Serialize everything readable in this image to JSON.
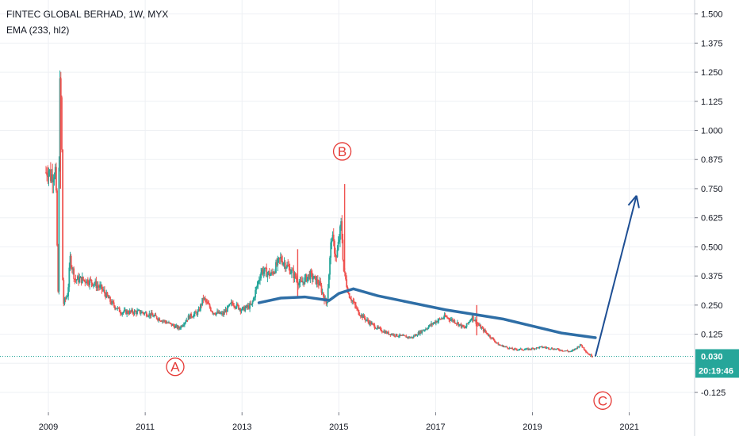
{
  "legend": {
    "symbol_line": "FINTEC GLOBAL BERHAD, 1W, MYX",
    "indicator_line": "EMA (233, hl2)"
  },
  "price_badge": {
    "value": "0.030",
    "countdown": "20:19:46",
    "color": "#26a69a"
  },
  "colors": {
    "up": "#26a69a",
    "down": "#ef5350",
    "ema": "#2e6ea6",
    "arrow": "#1e4f94",
    "wave": "#e53935"
  },
  "chart_data": {
    "type": "candlestick",
    "title": "",
    "ylim": [
      -0.21,
      1.56
    ],
    "xlim": [
      2008.0,
      2022.35
    ],
    "y_ticks": [
      "1.500",
      "1.375",
      "1.250",
      "1.125",
      "1.000",
      "0.875",
      "0.750",
      "0.625",
      "0.500",
      "0.375",
      "0.250",
      "0.125",
      "-0.125"
    ],
    "y_tick_values": [
      1.5,
      1.375,
      1.25,
      1.125,
      1.0,
      0.875,
      0.75,
      0.625,
      0.5,
      0.375,
      0.25,
      0.125,
      -0.125
    ],
    "x_ticks": [
      "2009",
      "2011",
      "2013",
      "2015",
      "2017",
      "2019",
      "2021"
    ],
    "x_tick_values": [
      2009,
      2011,
      2013,
      2015,
      2017,
      2019,
      2021
    ],
    "last_price": 0.03,
    "price_path": [
      [
        2008.95,
        0.82
      ],
      [
        2009.0,
        0.84
      ],
      [
        2009.05,
        0.8
      ],
      [
        2009.1,
        0.82
      ],
      [
        2009.15,
        0.83
      ],
      [
        2009.2,
        0.3
      ],
      [
        2009.23,
        1.2
      ],
      [
        2009.27,
        1.1
      ],
      [
        2009.3,
        0.25
      ],
      [
        2009.4,
        0.3
      ],
      [
        2009.45,
        0.45
      ],
      [
        2009.55,
        0.36
      ],
      [
        2009.7,
        0.36
      ],
      [
        2009.9,
        0.35
      ],
      [
        2010.1,
        0.32
      ],
      [
        2010.3,
        0.26
      ],
      [
        2010.5,
        0.22
      ],
      [
        2010.7,
        0.22
      ],
      [
        2010.9,
        0.22
      ],
      [
        2011.1,
        0.21
      ],
      [
        2011.3,
        0.19
      ],
      [
        2011.5,
        0.17
      ],
      [
        2011.7,
        0.15
      ],
      [
        2011.9,
        0.2
      ],
      [
        2012.1,
        0.22
      ],
      [
        2012.2,
        0.28
      ],
      [
        2012.4,
        0.22
      ],
      [
        2012.6,
        0.21
      ],
      [
        2012.8,
        0.26
      ],
      [
        2013.0,
        0.23
      ],
      [
        2013.2,
        0.25
      ],
      [
        2013.4,
        0.4
      ],
      [
        2013.6,
        0.38
      ],
      [
        2013.8,
        0.45
      ],
      [
        2014.0,
        0.4
      ],
      [
        2014.2,
        0.34
      ],
      [
        2014.4,
        0.38
      ],
      [
        2014.6,
        0.34
      ],
      [
        2014.75,
        0.25
      ],
      [
        2014.85,
        0.55
      ],
      [
        2014.95,
        0.45
      ],
      [
        2015.05,
        0.6
      ],
      [
        2015.1,
        0.4
      ],
      [
        2015.2,
        0.3
      ],
      [
        2015.4,
        0.22
      ],
      [
        2015.6,
        0.18
      ],
      [
        2015.8,
        0.15
      ],
      [
        2016.0,
        0.13
      ],
      [
        2016.2,
        0.12
      ],
      [
        2016.5,
        0.11
      ],
      [
        2016.8,
        0.15
      ],
      [
        2017.0,
        0.18
      ],
      [
        2017.2,
        0.2
      ],
      [
        2017.4,
        0.18
      ],
      [
        2017.6,
        0.15
      ],
      [
        2017.75,
        0.2
      ],
      [
        2017.9,
        0.16
      ],
      [
        2018.1,
        0.12
      ],
      [
        2018.3,
        0.08
      ],
      [
        2018.6,
        0.06
      ],
      [
        2018.9,
        0.06
      ],
      [
        2019.2,
        0.07
      ],
      [
        2019.5,
        0.06
      ],
      [
        2019.8,
        0.05
      ],
      [
        2020.0,
        0.08
      ],
      [
        2020.15,
        0.04
      ],
      [
        2020.25,
        0.03
      ]
    ],
    "spikes": [
      {
        "x": 2009.25,
        "low": 0.75,
        "high": 1.23
      },
      {
        "x": 2015.12,
        "low": 0.4,
        "high": 0.77
      },
      {
        "x": 2014.15,
        "low": 0.28,
        "high": 0.49
      },
      {
        "x": 2017.85,
        "low": 0.12,
        "high": 0.25
      }
    ],
    "ema_series": {
      "name": "EMA (233, hl2)",
      "points": [
        [
          2013.35,
          0.26
        ],
        [
          2013.8,
          0.28
        ],
        [
          2014.3,
          0.285
        ],
        [
          2014.8,
          0.27
        ],
        [
          2015.0,
          0.3
        ],
        [
          2015.3,
          0.32
        ],
        [
          2015.8,
          0.29
        ],
        [
          2016.5,
          0.26
        ],
        [
          2017.2,
          0.23
        ],
        [
          2017.8,
          0.21
        ],
        [
          2018.4,
          0.19
        ],
        [
          2019.0,
          0.16
        ],
        [
          2019.6,
          0.13
        ],
        [
          2020.3,
          0.11
        ]
      ]
    },
    "projection_arrow": {
      "from": [
        2020.3,
        0.03
      ],
      "to": [
        2021.15,
        0.72
      ]
    },
    "wave_labels": [
      {
        "label": "A",
        "x": 2011.62,
        "y": -0.015
      },
      {
        "label": "B",
        "x": 2015.07,
        "y": 0.91
      },
      {
        "label": "C",
        "x": 2020.45,
        "y": -0.16
      }
    ]
  }
}
